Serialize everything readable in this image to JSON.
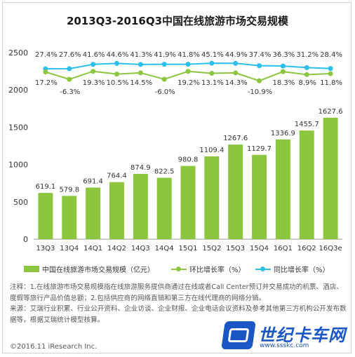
{
  "title": "2013Q3-2016Q3中国在线旅游市场交易规模",
  "chart_data": {
    "type": "bar",
    "categories": [
      "13Q3",
      "13Q4",
      "14Q1",
      "14Q2",
      "14Q3",
      "14Q4",
      "15Q1",
      "15Q2",
      "15Q3",
      "15Q4",
      "16Q1",
      "16Q2",
      "16Q3e"
    ],
    "ylim": [
      0,
      2500
    ],
    "yticks": [
      0,
      500,
      1000,
      1500,
      2000,
      2500
    ],
    "grid": false,
    "legend_position": "bottom",
    "series": [
      {
        "name": "中国在线旅游市场交易规模（亿元）",
        "kind": "bar",
        "color": "#8cc63e",
        "values": [
          619.1,
          579.8,
          691.4,
          764.4,
          874.9,
          822.5,
          980.8,
          1109.4,
          1267.6,
          1129.7,
          1336.9,
          1455.7,
          1627.6
        ],
        "labels": [
          "619.1",
          "579.8",
          "691.4",
          "764.4",
          "874.9",
          "822.5",
          "980.8",
          "1109.4",
          "1267.6",
          "1129.7",
          "1336.9",
          "1455.7",
          "1627.6"
        ]
      },
      {
        "name": "环比增长率（%）",
        "kind": "line",
        "color": "#8cc63e",
        "values": [
          17.2,
          -6.3,
          19.3,
          10.5,
          14.5,
          -6.0,
          19.2,
          13.1,
          14.3,
          -10.9,
          18.3,
          8.9,
          11.8
        ],
        "labels": [
          "17.2%",
          "-6.3%",
          "19.3%",
          "10.5%",
          "14.5%",
          "-6.0%",
          "19.2%",
          "13.1%",
          "14.3%",
          "-10.9%",
          "18.3%",
          "8.9%",
          "11.8%"
        ]
      },
      {
        "name": "同比增长率（%）",
        "kind": "line",
        "color": "#2bbfea",
        "values": [
          27.4,
          27.6,
          41.6,
          44.6,
          41.3,
          41.9,
          41.8,
          45.1,
          44.9,
          37.4,
          36.3,
          31.2,
          28.4
        ],
        "labels": [
          "27.4%",
          "27.6%",
          "41.6%",
          "44.6%",
          "41.3%",
          "41.9%",
          "41.8%",
          "45.1%",
          "44.9%",
          "37.4%",
          "36.3%",
          "31.2%",
          "28.4%"
        ]
      }
    ]
  },
  "notes": {
    "note": "注释：1.在线旅游市场交易规模指在线旅游服务提供商通过在线或者Call Center预订并交易成功的机票、酒店、度假等旅行产品价值总额；2.包括供应商的网络直销和第三方在线代理商的网络分销。",
    "source": "来源：艾瑞行业积累、行业公开资料、企业访谈、企业财报、企业电话会议资料及参考其他第三方机构公开发布数据等，根据艾瑞统计模型核算。"
  },
  "copyright": "©2016.11 iResearch Inc.",
  "watermark": {
    "brand": "世纪卡车网",
    "url": "www.ssskc.com"
  }
}
